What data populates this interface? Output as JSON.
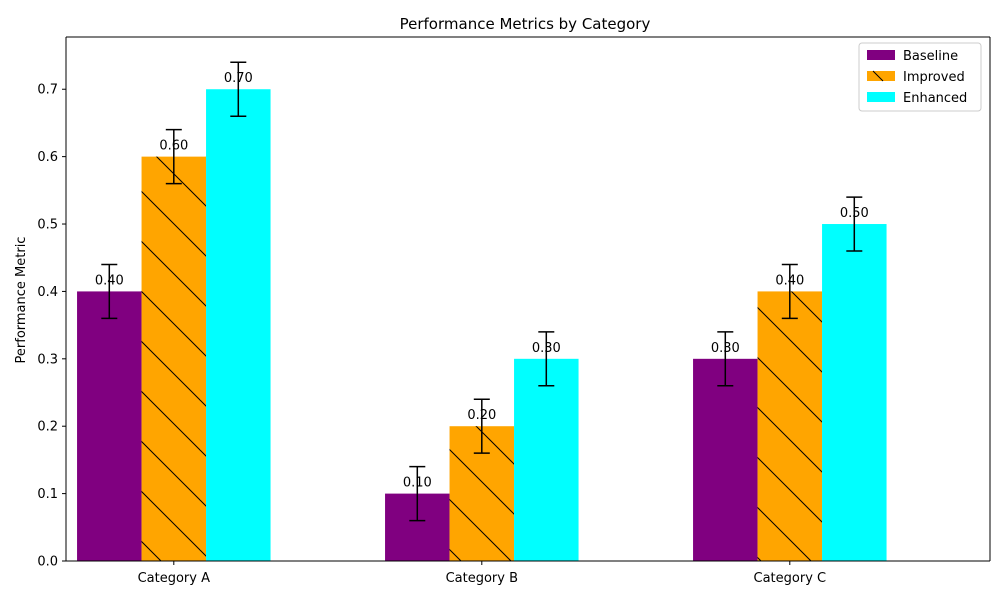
{
  "chart_data": {
    "type": "bar",
    "title": "Performance Metrics by Category",
    "xlabel": "",
    "ylabel": "Performance Metric",
    "categories": [
      "Category A",
      "Category B",
      "Category C"
    ],
    "ylim": [
      0,
      0.7775
    ],
    "yticks": [
      0.0,
      0.1,
      0.2,
      0.3,
      0.4,
      0.5,
      0.6,
      0.7
    ],
    "grid": false,
    "legend_position": "top-right",
    "series": [
      {
        "name": "Baseline",
        "values": [
          0.4,
          0.1,
          0.3
        ],
        "errors": [
          0.04,
          0.04,
          0.04
        ],
        "color": "#800080",
        "hatch": "none"
      },
      {
        "name": "Improved",
        "values": [
          0.6,
          0.2,
          0.4
        ],
        "errors": [
          0.04,
          0.04,
          0.04
        ],
        "color": "#FFA500",
        "hatch": "backslash"
      },
      {
        "name": "Enhanced",
        "values": [
          0.7,
          0.3,
          0.5
        ],
        "errors": [
          0.04,
          0.04,
          0.04
        ],
        "color": "#00FFFF",
        "hatch": "none"
      }
    ],
    "data_labels": [
      [
        "0.40",
        "0.10",
        "0.30"
      ],
      [
        "0.60",
        "0.20",
        "0.40"
      ],
      [
        "0.70",
        "0.30",
        "0.50"
      ]
    ]
  }
}
